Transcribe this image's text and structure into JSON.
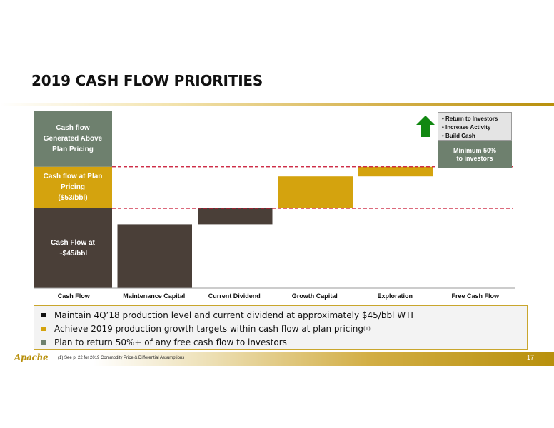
{
  "title": "2019 CASH FLOW PRIORITIES",
  "colors": {
    "dark": "#4a3f38",
    "gold": "#d4a30e",
    "gray_green": "#6e806e",
    "dashed_line": "#c8102e",
    "arrow": "#118811",
    "accent": "#b8900c"
  },
  "chart_data": {
    "type": "waterfall",
    "categories": [
      "Cash Flow",
      "Maintenance Capital",
      "Current Dividend",
      "Growth Capital",
      "Exploration",
      "Free Cash Flow"
    ],
    "reference_lines": {
      "base_level": 100,
      "plan_level": 152
    },
    "cash_flow_stack": [
      {
        "label": "Cash Flow at\n~$45/bbl",
        "bottom": 0,
        "top": 100,
        "color": "#4a3f38"
      },
      {
        "label": "Cash flow at Plan\nPricing\n($53/bbl)",
        "bottom": 100,
        "top": 152,
        "color": "#d4a30e"
      },
      {
        "label": "Cash flow\nGenerated Above\nPlan Pricing",
        "bottom": 152,
        "top": 222,
        "color": "#6e806e"
      }
    ],
    "steps": [
      {
        "category": "Maintenance Capital",
        "bottom": 0,
        "top": 80,
        "color": "#4a3f38"
      },
      {
        "category": "Current Dividend",
        "bottom": 80,
        "top": 100,
        "color": "#4a3f38"
      },
      {
        "category": "Growth Capital",
        "bottom": 100,
        "top": 140,
        "color": "#d4a30e"
      },
      {
        "category": "Exploration",
        "bottom": 140,
        "top": 152,
        "color": "#d4a30e"
      }
    ],
    "free_cash_flow": {
      "box_text": "Minimum 50%\nto investors",
      "box_color": "#6e806e",
      "callout_items": [
        "Return to Investors",
        "Increase Activity",
        "Build Cash"
      ],
      "arrow_icon": "up-arrow-icon"
    },
    "ylim": [
      0,
      230
    ],
    "grid": false
  },
  "bullets": [
    {
      "text": "Maintain 4Q’18 production level and current dividend at approximately $45/bbl WTI",
      "note": "",
      "color": "#111111"
    },
    {
      "text": "Achieve 2019 production growth targets within cash flow at plan pricing",
      "note": "(1)",
      "color": "#d4a30e"
    },
    {
      "text": "Plan to return 50%+ of any free cash flow to investors",
      "note": "",
      "color": "#6e806e"
    }
  ],
  "footer": {
    "footnote": "(1) See p. 22 for 2019 Commodity Price & Differential Assumptions",
    "page_number": "17",
    "logo_text": "Apache"
  }
}
